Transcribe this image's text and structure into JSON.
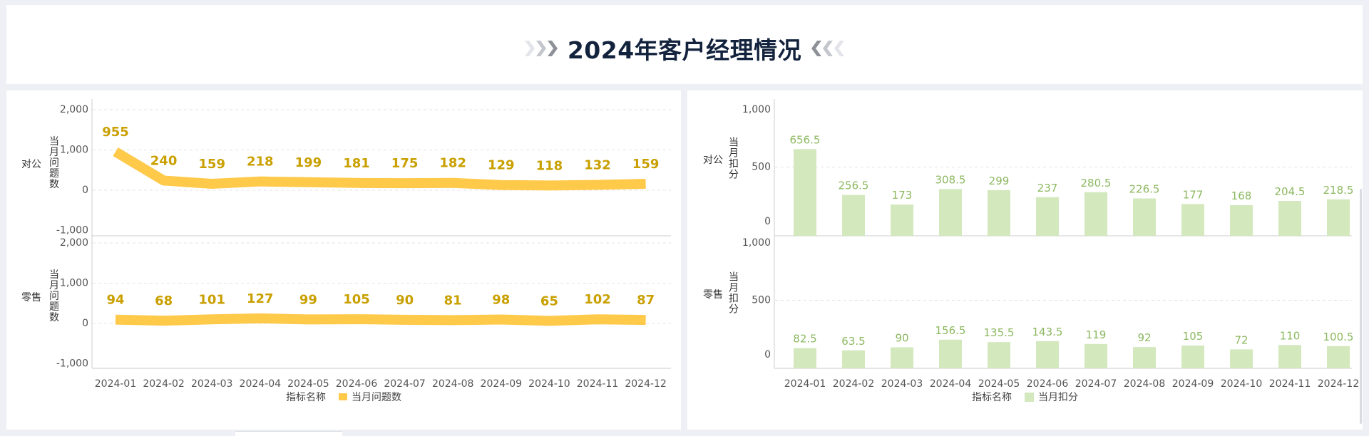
{
  "header": {
    "title": "2024年客户经理情况"
  },
  "chart_data": [
    {
      "type": "line",
      "categories": [
        "2024-01",
        "2024-02",
        "2024-03",
        "2024-04",
        "2024-05",
        "2024-06",
        "2024-07",
        "2024-08",
        "2024-09",
        "2024-10",
        "2024-11",
        "2024-12"
      ],
      "ylabel": "当月问题数",
      "ylim": [
        -1000,
        2000
      ],
      "yticks": [
        "2,000",
        "1,000",
        "0",
        "-1,000"
      ],
      "legend_title": "指标名称",
      "legend_position": "bottom",
      "color": "#ffc94a",
      "grid": true,
      "series": [
        {
          "name": "当月问题数",
          "row": "对公",
          "values": [
            955,
            240,
            159,
            218,
            199,
            181,
            175,
            182,
            129,
            118,
            132,
            159
          ]
        },
        {
          "name": "当月问题数",
          "row": "零售",
          "values": [
            94,
            68,
            101,
            127,
            99,
            105,
            90,
            81,
            98,
            65,
            102,
            87
          ]
        }
      ]
    },
    {
      "type": "bar",
      "categories": [
        "2024-01",
        "2024-02",
        "2024-03",
        "2024-04",
        "2024-05",
        "2024-06",
        "2024-07",
        "2024-08",
        "2024-09",
        "2024-10",
        "2024-11",
        "2024-12"
      ],
      "ylabel": "当月扣分",
      "ylim": [
        0,
        1000
      ],
      "yticks": [
        "1,000",
        "500",
        "0"
      ],
      "legend_title": "指标名称",
      "legend_position": "bottom",
      "color": "#d3e8bd",
      "grid": true,
      "series": [
        {
          "name": "当月扣分",
          "row": "对公",
          "values": [
            656.5,
            256.5,
            173,
            308.5,
            299,
            237,
            280.5,
            226.5,
            177,
            168,
            204.5,
            218.5
          ]
        },
        {
          "name": "当月扣分",
          "row": "零售",
          "values": [
            82.5,
            63.5,
            90,
            156.5,
            135.5,
            143.5,
            119,
            92,
            105,
            72,
            110,
            100.5
          ]
        }
      ]
    }
  ]
}
